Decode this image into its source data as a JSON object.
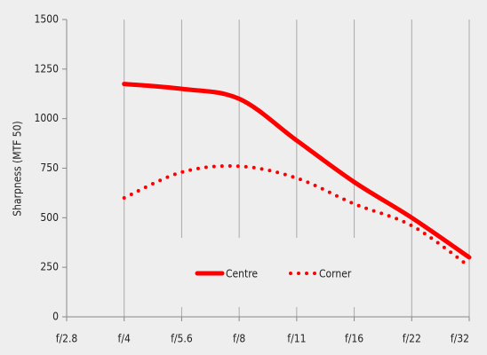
{
  "chart_data": {
    "type": "line",
    "y_label": "Sharpness (MTF 50)",
    "categories": [
      "f/2.8",
      "f/4",
      "f/5.6",
      "f/8",
      "f/11",
      "f/16",
      "f/22",
      "f/32"
    ],
    "series": [
      {
        "name": "Centre",
        "color": "#ff0000",
        "style": "solid",
        "values": [
          null,
          1175,
          1150,
          1100,
          890,
          680,
          500,
          300
        ]
      },
      {
        "name": "Corner",
        "color": "#ff0000",
        "style": "dotted",
        "values": [
          null,
          600,
          730,
          760,
          700,
          570,
          460,
          255
        ]
      }
    ],
    "ylim": [
      0,
      1500
    ],
    "yticks": [
      0,
      250,
      500,
      750,
      1000,
      1250,
      1500
    ],
    "grid": "x",
    "legend": "bottom-center"
  }
}
